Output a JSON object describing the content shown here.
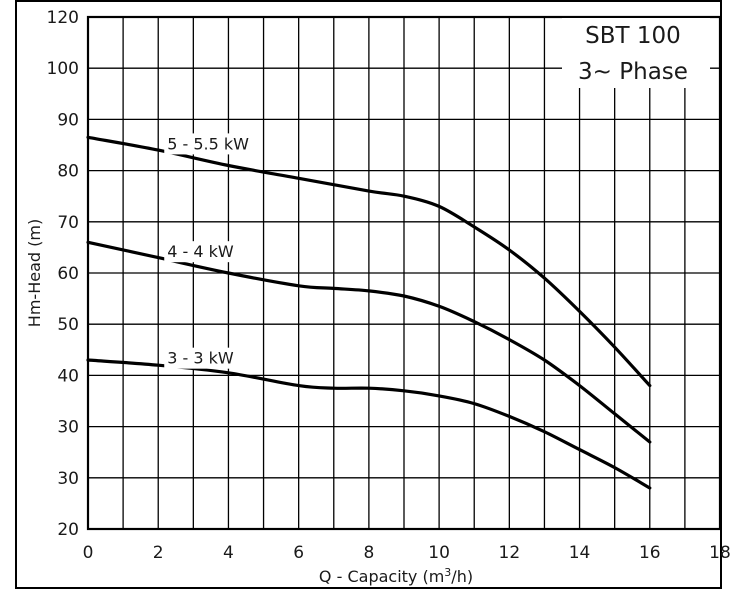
{
  "chart_data": {
    "type": "line",
    "title": "SBT 100",
    "subtitle": "3~ Phase",
    "xlabel_prefix": "Q - Capacity (m",
    "xlabel_sup": "3",
    "xlabel_suffix": "/h)",
    "ylabel": "Hm-Head (m)",
    "xlim": [
      0,
      18
    ],
    "ylim": [
      20,
      120
    ],
    "x_ticks": [
      0,
      2,
      4,
      6,
      8,
      10,
      12,
      14,
      16,
      18
    ],
    "y_tick_labels": [
      "20",
      "30",
      "30",
      "40",
      "50",
      "60",
      "70",
      "80",
      "90",
      "100",
      "120"
    ],
    "grid": true,
    "series": [
      {
        "name": "5 - 5.5 kW",
        "x": [
          0,
          2,
          4,
          6,
          8,
          9,
          10,
          11,
          12,
          13,
          14,
          15,
          16
        ],
        "y": [
          96.5,
          94,
          91,
          88.5,
          86,
          85,
          83,
          79,
          74.5,
          69,
          62.5,
          55.5,
          48
        ]
      },
      {
        "name": "4 - 4 kW",
        "x": [
          0,
          2,
          4,
          6,
          7,
          8,
          9,
          10,
          11,
          12,
          13,
          14,
          15,
          16
        ],
        "y": [
          76,
          73,
          70,
          67.5,
          67,
          66.5,
          65.5,
          63.5,
          60.5,
          57,
          53,
          48,
          42.5,
          37
        ]
      },
      {
        "name": "3 - 3 kW",
        "x": [
          0,
          2,
          4,
          6,
          7,
          8,
          9,
          10,
          11,
          12,
          13,
          14,
          15,
          16
        ],
        "y": [
          53,
          52,
          50.5,
          48,
          47.5,
          47.5,
          47,
          46,
          44.5,
          42,
          39,
          35.5,
          32,
          28
        ]
      }
    ]
  }
}
